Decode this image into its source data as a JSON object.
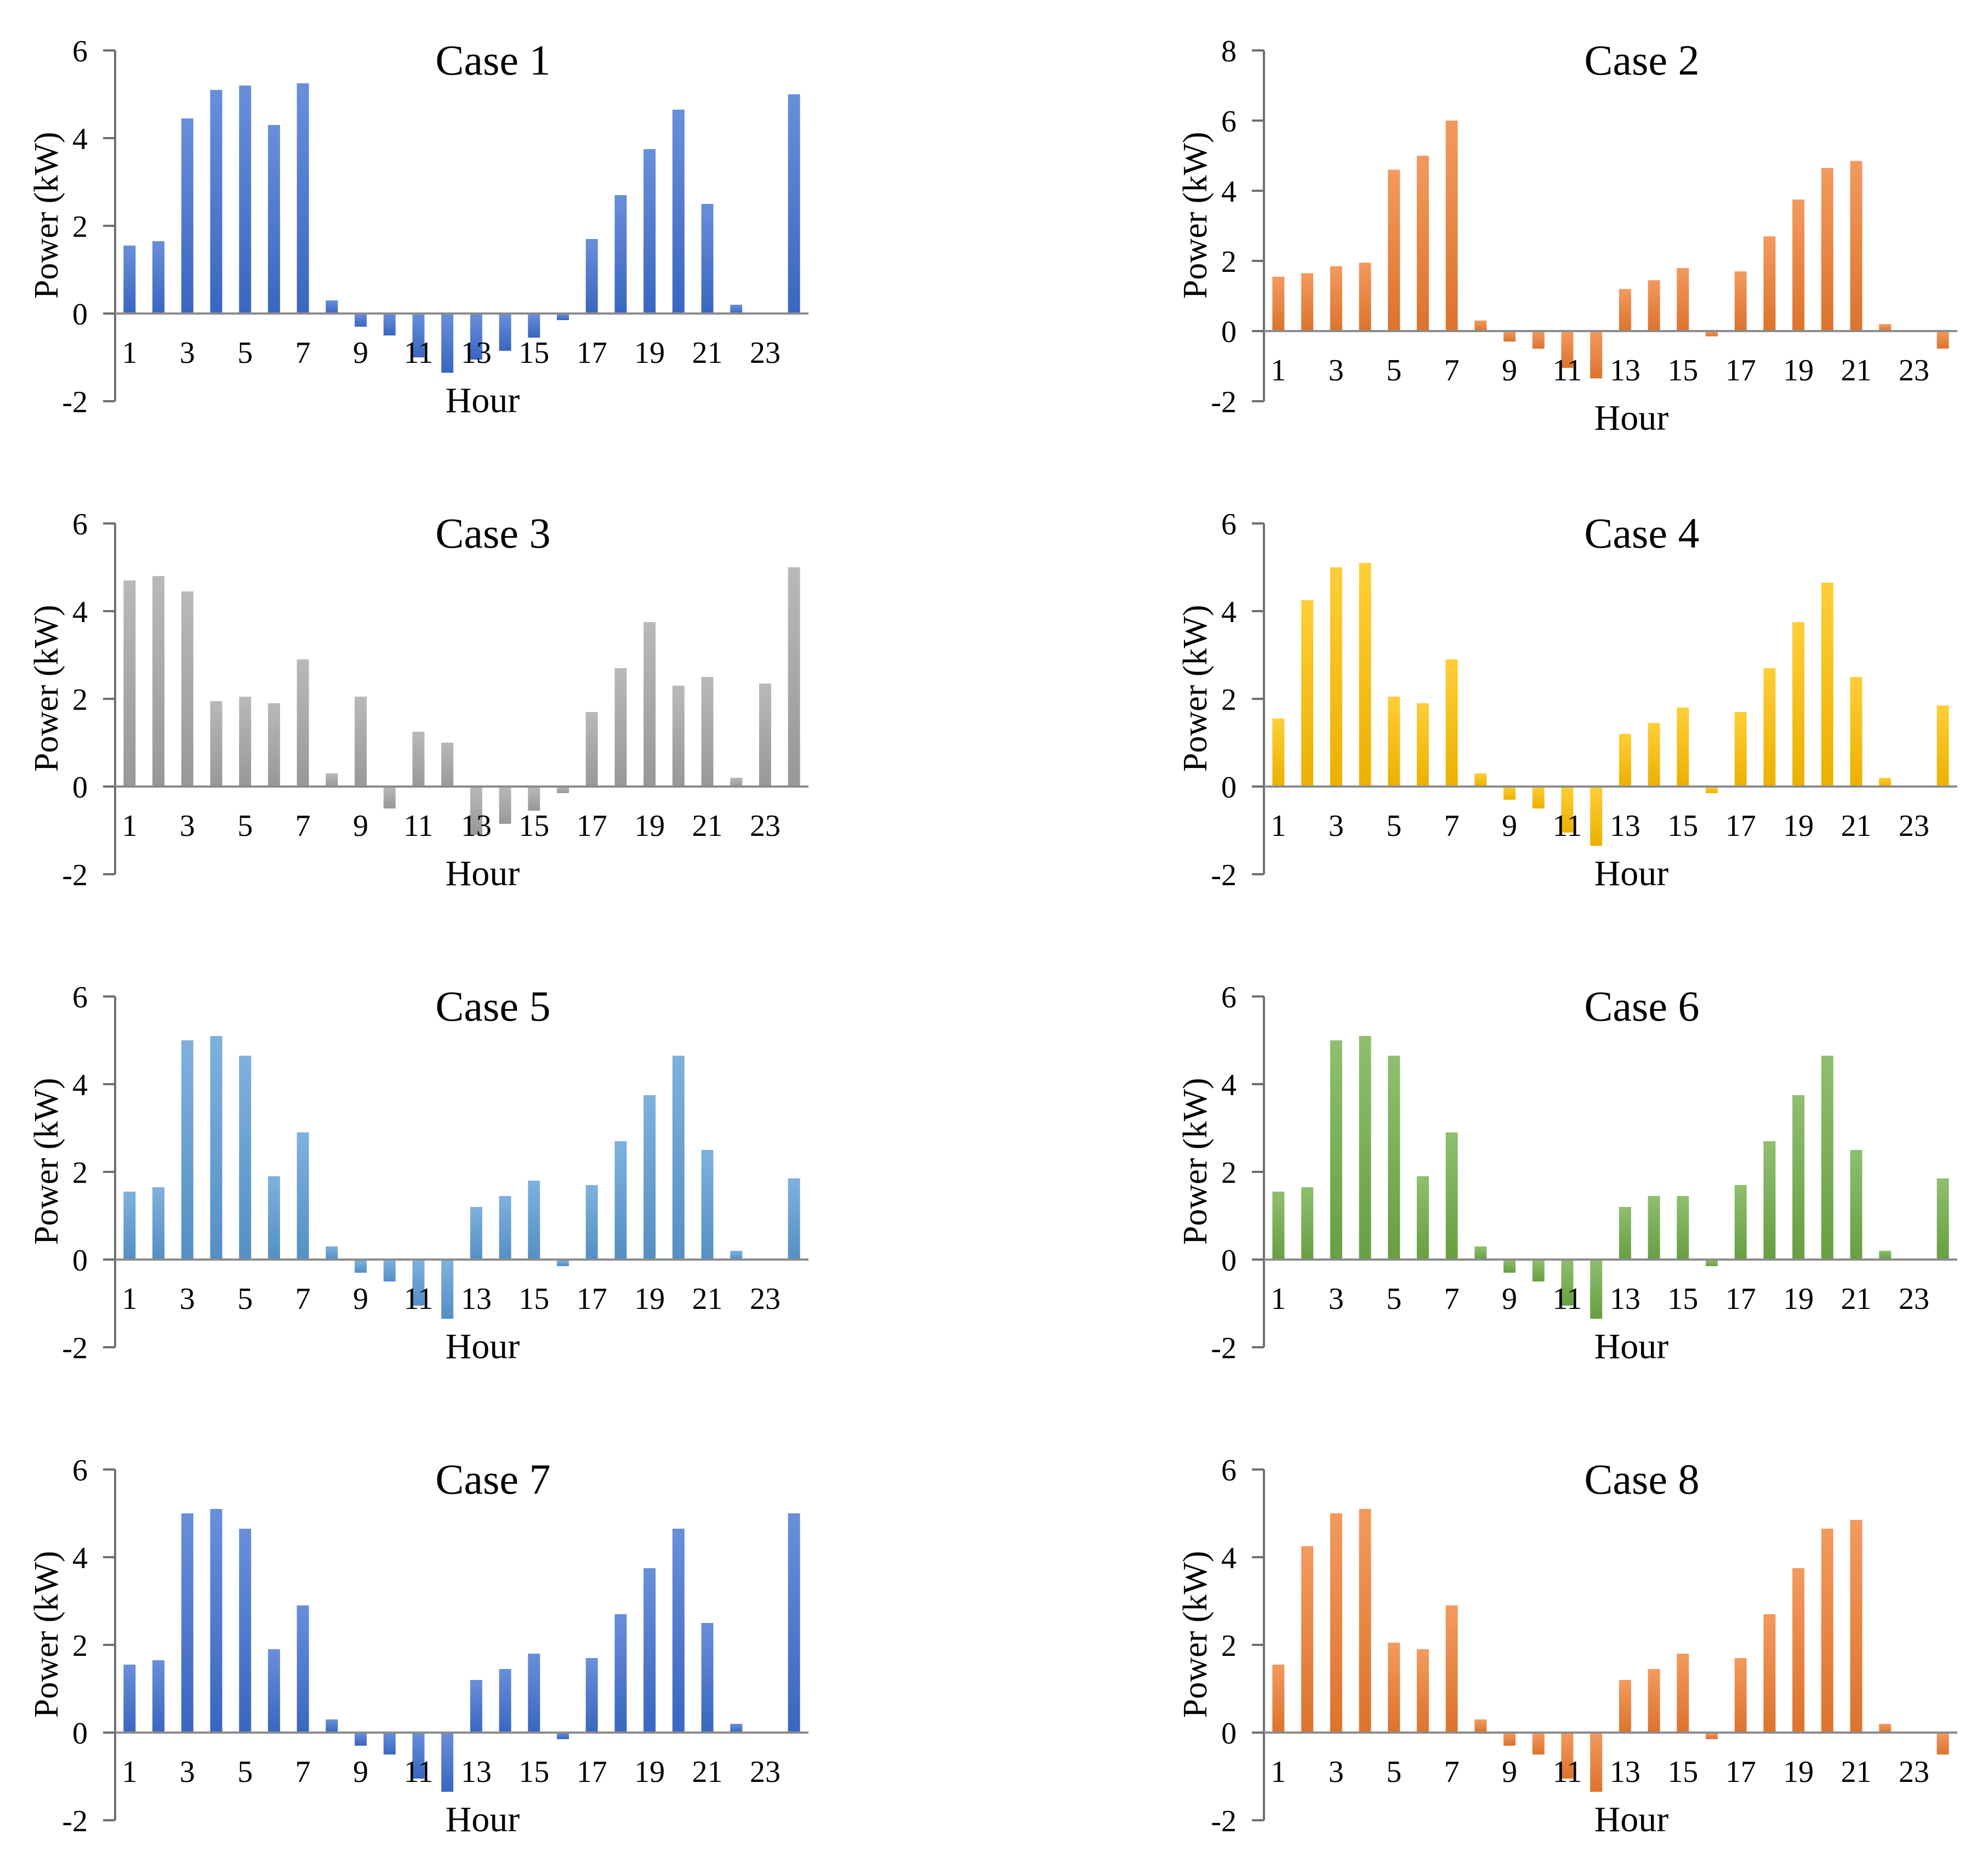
{
  "chart_data": [
    {
      "type": "bar",
      "title": "Case 1",
      "xlabel": "Hour",
      "ylabel": "Power (kW)",
      "ylim": [
        -2,
        6
      ],
      "yticks": [
        -2,
        0,
        2,
        4,
        6
      ],
      "xtick_labels": [
        "1",
        "3",
        "5",
        "7",
        "9",
        "11",
        "13",
        "15",
        "17",
        "19",
        "21",
        "23"
      ],
      "categories": [
        1,
        2,
        3,
        4,
        5,
        6,
        7,
        8,
        9,
        10,
        11,
        12,
        13,
        14,
        15,
        16,
        17,
        18,
        19,
        20,
        21,
        22,
        23,
        24
      ],
      "values": [
        1.55,
        1.65,
        4.45,
        5.1,
        5.2,
        4.3,
        5.25,
        0.3,
        -0.3,
        -0.5,
        -1.0,
        -1.35,
        -1.05,
        -0.85,
        -0.55,
        -0.15,
        1.7,
        2.7,
        3.75,
        4.65,
        2.5,
        0.2,
        0,
        5.0
      ],
      "color": "#3f6fd1"
    },
    {
      "type": "bar",
      "title": "Case 2",
      "xlabel": "Hour",
      "ylabel": "Power (kW)",
      "ylim": [
        -2,
        8
      ],
      "yticks": [
        -2,
        0,
        2,
        4,
        6,
        8
      ],
      "xtick_labels": [
        "1",
        "3",
        "5",
        "7",
        "9",
        "11",
        "13",
        "15",
        "17",
        "19",
        "21",
        "23"
      ],
      "categories": [
        1,
        2,
        3,
        4,
        5,
        6,
        7,
        8,
        9,
        10,
        11,
        12,
        13,
        14,
        15,
        16,
        17,
        18,
        19,
        20,
        21,
        22,
        23,
        24
      ],
      "values": [
        1.55,
        1.65,
        1.85,
        1.95,
        4.6,
        5.0,
        6.0,
        0.3,
        -0.3,
        -0.5,
        -1.05,
        -1.35,
        1.2,
        1.45,
        1.8,
        -0.15,
        1.7,
        2.7,
        3.75,
        4.65,
        4.85,
        0.2,
        0,
        -0.5
      ],
      "color": "#ef7d31"
    },
    {
      "type": "bar",
      "title": "Case 3",
      "xlabel": "Hour",
      "ylabel": "Power (kW)",
      "ylim": [
        -2,
        6
      ],
      "yticks": [
        -2,
        0,
        2,
        4,
        6
      ],
      "xtick_labels": [
        "1",
        "3",
        "5",
        "7",
        "9",
        "11",
        "13",
        "15",
        "17",
        "19",
        "21",
        "23"
      ],
      "categories": [
        1,
        2,
        3,
        4,
        5,
        6,
        7,
        8,
        9,
        10,
        11,
        12,
        13,
        14,
        15,
        16,
        17,
        18,
        19,
        20,
        21,
        22,
        23,
        24
      ],
      "values": [
        4.7,
        4.8,
        4.45,
        1.95,
        2.05,
        1.9,
        2.9,
        0.3,
        2.05,
        -0.5,
        1.25,
        1.0,
        -1.1,
        -0.85,
        -0.55,
        -0.15,
        1.7,
        2.7,
        3.75,
        2.3,
        2.5,
        0.2,
        2.35,
        5.0
      ],
      "color": "#a5a5a5"
    },
    {
      "type": "bar",
      "title": "Case 4",
      "xlabel": "Hour",
      "ylabel": "Power (kW)",
      "ylim": [
        -2,
        6
      ],
      "yticks": [
        -2,
        0,
        2,
        4,
        6
      ],
      "xtick_labels": [
        "1",
        "3",
        "5",
        "7",
        "9",
        "11",
        "13",
        "15",
        "17",
        "19",
        "21",
        "23"
      ],
      "categories": [
        1,
        2,
        3,
        4,
        5,
        6,
        7,
        8,
        9,
        10,
        11,
        12,
        13,
        14,
        15,
        16,
        17,
        18,
        19,
        20,
        21,
        22,
        23,
        24
      ],
      "values": [
        1.55,
        4.25,
        5.0,
        5.1,
        2.05,
        1.9,
        2.9,
        0.3,
        -0.3,
        -0.5,
        -1.05,
        -1.35,
        1.2,
        1.45,
        1.8,
        -0.15,
        1.7,
        2.7,
        3.75,
        4.65,
        2.5,
        0.2,
        0,
        1.85
      ],
      "color": "#ffc000"
    },
    {
      "type": "bar",
      "title": "Case 5",
      "xlabel": "Hour",
      "ylabel": "Power (kW)",
      "ylim": [
        -2,
        6
      ],
      "yticks": [
        -2,
        0,
        2,
        4,
        6
      ],
      "xtick_labels": [
        "1",
        "3",
        "5",
        "7",
        "9",
        "11",
        "13",
        "15",
        "17",
        "19",
        "21",
        "23"
      ],
      "categories": [
        1,
        2,
        3,
        4,
        5,
        6,
        7,
        8,
        9,
        10,
        11,
        12,
        13,
        14,
        15,
        16,
        17,
        18,
        19,
        20,
        21,
        22,
        23,
        24
      ],
      "values": [
        1.55,
        1.65,
        5.0,
        5.1,
        4.65,
        1.9,
        2.9,
        0.3,
        -0.3,
        -0.5,
        -1.05,
        -1.35,
        1.2,
        1.45,
        1.8,
        -0.15,
        1.7,
        2.7,
        3.75,
        4.65,
        2.5,
        0.2,
        0,
        1.85
      ],
      "color": "#5b9bd5"
    },
    {
      "type": "bar",
      "title": "Case 6",
      "xlabel": "Hour",
      "ylabel": "Power (kW)",
      "ylim": [
        -2,
        6
      ],
      "yticks": [
        -2,
        0,
        2,
        4,
        6
      ],
      "xtick_labels": [
        "1",
        "3",
        "5",
        "7",
        "9",
        "11",
        "13",
        "15",
        "17",
        "19",
        "21",
        "23"
      ],
      "categories": [
        1,
        2,
        3,
        4,
        5,
        6,
        7,
        8,
        9,
        10,
        11,
        12,
        13,
        14,
        15,
        16,
        17,
        18,
        19,
        20,
        21,
        22,
        23,
        24
      ],
      "values": [
        1.55,
        1.65,
        5.0,
        5.1,
        4.65,
        1.9,
        2.9,
        0.3,
        -0.3,
        -0.5,
        -1.05,
        -1.35,
        1.2,
        1.45,
        1.45,
        -0.15,
        1.7,
        2.7,
        3.75,
        4.65,
        2.5,
        0.2,
        0,
        1.85
      ],
      "color": "#70ad47"
    },
    {
      "type": "bar",
      "title": "Case 7",
      "xlabel": "Hour",
      "ylabel": "Power (kW)",
      "ylim": [
        -2,
        6
      ],
      "yticks": [
        -2,
        0,
        2,
        4,
        6
      ],
      "xtick_labels": [
        "1",
        "3",
        "5",
        "7",
        "9",
        "11",
        "13",
        "15",
        "17",
        "19",
        "21",
        "23"
      ],
      "categories": [
        1,
        2,
        3,
        4,
        5,
        6,
        7,
        8,
        9,
        10,
        11,
        12,
        13,
        14,
        15,
        16,
        17,
        18,
        19,
        20,
        21,
        22,
        23,
        24
      ],
      "values": [
        1.55,
        1.65,
        5.0,
        5.1,
        4.65,
        1.9,
        2.9,
        0.3,
        -0.3,
        -0.5,
        -1.05,
        -1.35,
        1.2,
        1.45,
        1.8,
        -0.15,
        1.7,
        2.7,
        3.75,
        4.65,
        2.5,
        0.2,
        0,
        5.0
      ],
      "color": "#3f6fd1"
    },
    {
      "type": "bar",
      "title": "Case 8",
      "xlabel": "Hour",
      "ylabel": "Power (kW)",
      "ylim": [
        -2,
        6
      ],
      "yticks": [
        -2,
        0,
        2,
        4,
        6
      ],
      "xtick_labels": [
        "1",
        "3",
        "5",
        "7",
        "9",
        "11",
        "13",
        "15",
        "17",
        "19",
        "21",
        "23"
      ],
      "categories": [
        1,
        2,
        3,
        4,
        5,
        6,
        7,
        8,
        9,
        10,
        11,
        12,
        13,
        14,
        15,
        16,
        17,
        18,
        19,
        20,
        21,
        22,
        23,
        24
      ],
      "values": [
        1.55,
        4.25,
        5.0,
        5.1,
        2.05,
        1.9,
        2.9,
        0.3,
        -0.3,
        -0.5,
        -1.05,
        -1.35,
        1.2,
        1.45,
        1.8,
        -0.15,
        1.7,
        2.7,
        3.75,
        4.65,
        4.85,
        0.2,
        0,
        -0.5
      ],
      "color": "#ef7d31"
    }
  ]
}
